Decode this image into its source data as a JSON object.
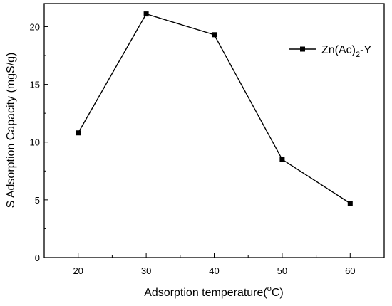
{
  "chart_data": {
    "type": "line",
    "xlabel_text": "Adsorption temperature(",
    "xlabel_sup": "o",
    "xlabel_unit": "C)",
    "ylabel": "S Adsorption Capacity (mgS/g)",
    "x": [
      20,
      30,
      40,
      50,
      60
    ],
    "xlim": [
      15,
      65
    ],
    "ylim": [
      0,
      22
    ],
    "xticks": [
      "20",
      "30",
      "40",
      "50",
      "60"
    ],
    "yticks": [
      "0",
      "5",
      "10",
      "15",
      "20"
    ],
    "series": [
      {
        "name_main": "Zn(Ac)",
        "name_sub": "2",
        "name_suffix": "-Y",
        "values": [
          10.8,
          21.1,
          19.3,
          8.5,
          4.7
        ],
        "color": "#000000",
        "marker": "square"
      }
    ],
    "legend_position": "top-right",
    "grid": false
  }
}
